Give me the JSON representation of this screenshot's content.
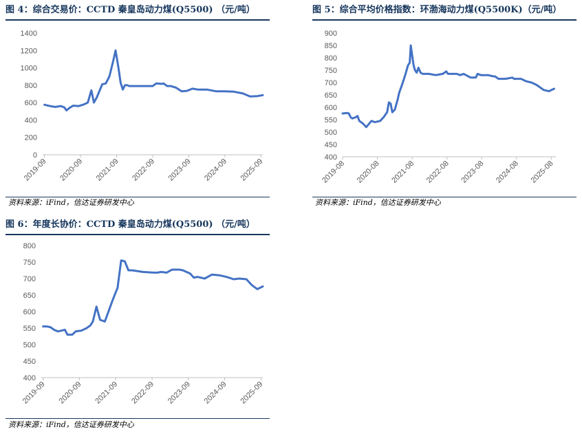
{
  "charts": [
    {
      "title": "图 4：综合交易价：CCTD 秦皇岛动力煤(Q5500)  （元/吨）",
      "source": "资料来源：iFind，信达证券研发中心"
    },
    {
      "title": "图 5：综合平均价格指数：环渤海动力煤(Q5500K)（元/吨）",
      "source": "资料来源：iFind，信达证券研发中心"
    },
    {
      "title": "图 6：年度长协价：CCTD 秦皇岛动力煤(Q5500)  （元/吨）",
      "source": "资料来源：iFind，信达证券研发中心"
    }
  ],
  "chart_data": [
    {
      "type": "line",
      "title": "综合交易价：CCTD 秦皇岛动力煤(Q5500)",
      "unit": "元/吨",
      "color": "#4472c4",
      "ylim": [
        0,
        1400
      ],
      "yticks": [
        0,
        200,
        400,
        600,
        800,
        1000,
        1200,
        1400
      ],
      "xlim": [
        2019.7,
        2025.8
      ],
      "xtick_values": [
        2019.75,
        2020.75,
        2021.75,
        2022.75,
        2023.75,
        2024.75,
        2025.75
      ],
      "xticks": [
        "2019-09",
        "2020-09",
        "2021-09",
        "2022-09",
        "2023-09",
        "2024-09",
        "2025-09"
      ],
      "x": [
        2019.75,
        2019.9,
        2020.05,
        2020.2,
        2020.3,
        2020.36,
        2020.45,
        2020.55,
        2020.7,
        2020.85,
        2020.95,
        2021.05,
        2021.12,
        2021.2,
        2021.27,
        2021.35,
        2021.45,
        2021.55,
        2021.65,
        2021.72,
        2021.8,
        2021.86,
        2021.92,
        2021.98,
        2022.04,
        2022.1,
        2022.25,
        2022.5,
        2022.75,
        2022.85,
        2023.0,
        2023.05,
        2023.15,
        2023.25,
        2023.4,
        2023.55,
        2023.7,
        2023.85,
        2024.0,
        2024.25,
        2024.5,
        2024.75,
        2025.0,
        2025.25,
        2025.45,
        2025.65,
        2025.8
      ],
      "y": [
        575,
        560,
        550,
        560,
        545,
        510,
        540,
        565,
        560,
        580,
        600,
        740,
        600,
        660,
        730,
        810,
        820,
        900,
        1070,
        1200,
        1000,
        830,
        750,
        800,
        800,
        790,
        790,
        790,
        790,
        820,
        815,
        820,
        790,
        790,
        770,
        730,
        735,
        760,
        750,
        750,
        730,
        730,
        725,
        705,
        670,
        675,
        685
      ]
    },
    {
      "type": "line",
      "title": "综合平均价格指数：环渤海动力煤(Q5500K)",
      "unit": "元/吨",
      "color": "#4472c4",
      "ylim": [
        400,
        900
      ],
      "yticks": [
        400,
        450,
        500,
        550,
        600,
        650,
        700,
        750,
        800,
        850,
        900
      ],
      "xlim": [
        2019.62,
        2025.75
      ],
      "xtick_values": [
        2019.62,
        2020.62,
        2021.62,
        2022.62,
        2023.62,
        2024.62,
        2025.62
      ],
      "xticks": [
        "2019-08",
        "2020-08",
        "2021-08",
        "2022-08",
        "2023-08",
        "2024-08",
        "2025-08"
      ],
      "x": [
        2019.62,
        2019.75,
        2019.8,
        2019.85,
        2019.9,
        2020.0,
        2020.05,
        2020.1,
        2020.2,
        2020.3,
        2020.36,
        2020.45,
        2020.55,
        2020.7,
        2020.8,
        2020.9,
        2020.95,
        2021.0,
        2021.05,
        2021.08,
        2021.12,
        2021.2,
        2021.25,
        2021.3,
        2021.35,
        2021.42,
        2021.5,
        2021.55,
        2021.58,
        2021.62,
        2021.66,
        2021.7,
        2021.75,
        2021.8,
        2021.86,
        2021.92,
        2021.98,
        2022.1,
        2022.3,
        2022.5,
        2022.6,
        2022.65,
        2022.9,
        2023.0,
        2023.1,
        2023.3,
        2023.45,
        2023.5,
        2023.6,
        2023.8,
        2023.95,
        2024.0,
        2024.1,
        2024.3,
        2024.5,
        2024.55,
        2024.75,
        2024.9,
        2025.05,
        2025.2,
        2025.4,
        2025.55,
        2025.7
      ],
      "y": [
        575,
        577,
        575,
        560,
        555,
        560,
        565,
        545,
        535,
        520,
        530,
        545,
        540,
        545,
        560,
        580,
        620,
        615,
        580,
        585,
        590,
        630,
        660,
        680,
        700,
        730,
        770,
        780,
        850,
        810,
        770,
        750,
        740,
        760,
        740,
        735,
        735,
        735,
        730,
        735,
        745,
        735,
        735,
        730,
        735,
        720,
        720,
        735,
        730,
        730,
        725,
        725,
        715,
        715,
        720,
        715,
        715,
        705,
        700,
        690,
        670,
        665,
        675
      ]
    },
    {
      "type": "line",
      "title": "年度长协价：CCTD 秦皇岛动力煤(Q5500)",
      "unit": "元/吨",
      "color": "#4472c4",
      "ylim": [
        400,
        800
      ],
      "yticks": [
        400,
        450,
        500,
        550,
        600,
        650,
        700,
        750,
        800
      ],
      "xlim": [
        2019.7,
        2025.8
      ],
      "xtick_values": [
        2019.75,
        2020.75,
        2021.75,
        2022.75,
        2023.75,
        2024.75,
        2025.75
      ],
      "xticks": [
        "2019-09",
        "2020-09",
        "2021-09",
        "2022-09",
        "2023-09",
        "2024-09",
        "2025-09"
      ],
      "x": [
        2019.75,
        2019.85,
        2019.95,
        2020.05,
        2020.15,
        2020.25,
        2020.35,
        2020.42,
        2020.55,
        2020.65,
        2020.8,
        2020.95,
        2021.05,
        2021.12,
        2021.22,
        2021.32,
        2021.45,
        2021.55,
        2021.65,
        2021.72,
        2021.8,
        2021.9,
        2022.0,
        2022.1,
        2022.2,
        2022.5,
        2022.8,
        2022.9,
        2023.0,
        2023.15,
        2023.3,
        2023.5,
        2023.6,
        2023.7,
        2023.8,
        2023.9,
        2024.0,
        2024.2,
        2024.4,
        2024.6,
        2024.8,
        2025.0,
        2025.15,
        2025.35,
        2025.5,
        2025.65,
        2025.8
      ],
      "y": [
        555,
        555,
        553,
        545,
        540,
        542,
        545,
        530,
        530,
        540,
        542,
        550,
        558,
        570,
        615,
        575,
        570,
        600,
        630,
        650,
        672,
        755,
        752,
        725,
        725,
        720,
        718,
        718,
        720,
        718,
        727,
        727,
        725,
        720,
        715,
        703,
        705,
        700,
        712,
        710,
        705,
        698,
        700,
        698,
        680,
        668,
        676
      ]
    }
  ]
}
